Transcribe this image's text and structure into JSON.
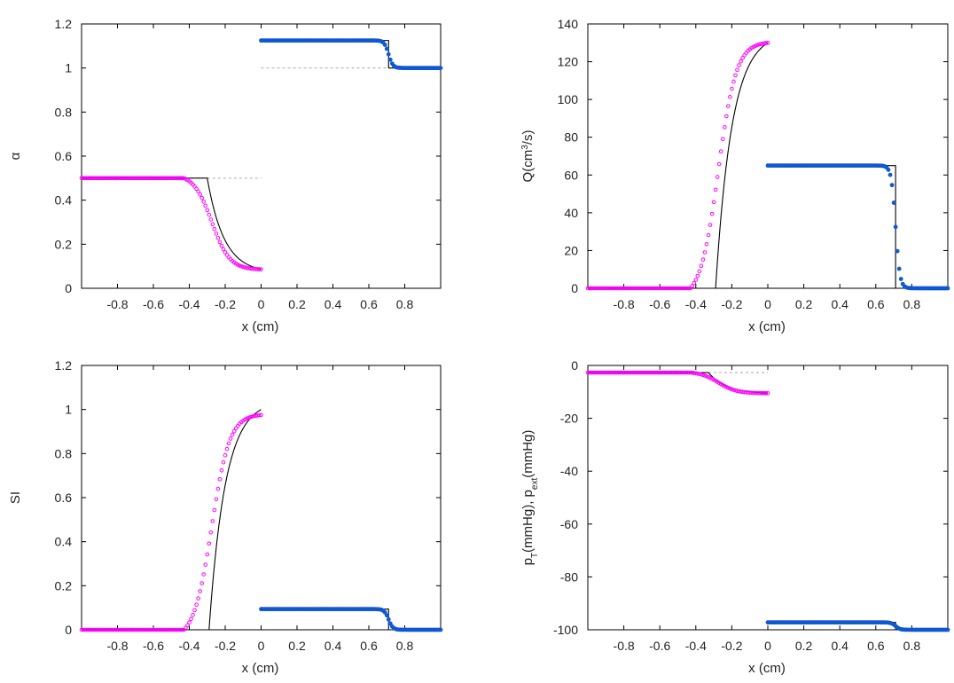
{
  "chart_data": [
    {
      "id": "alpha",
      "type": "line",
      "xlabel": "x (cm)",
      "ylabel": "α",
      "ylabel_parts": [
        {
          "t": "α",
          "s": ""
        }
      ],
      "xlim": [
        -1,
        1
      ],
      "ylim": [
        0,
        1.2
      ],
      "xticks": [
        -0.8,
        -0.6,
        -0.4,
        -0.2,
        0,
        0.2,
        0.4,
        0.6,
        0.8
      ],
      "xtick_labels": [
        "-0.8",
        "-0.6",
        "-0.4",
        "-0.2",
        "0",
        "0.2",
        "0.4",
        "0.6",
        "0.8"
      ],
      "yticks": [
        0,
        0.2,
        0.4,
        0.6,
        0.8,
        1,
        1.2
      ],
      "ytick_labels": [
        "0",
        "0.2",
        "0.4",
        "0.6",
        "0.8",
        "1",
        "1.2"
      ],
      "left": {
        "x0": -1,
        "x1": 0,
        "plateau": 0.5,
        "end": 0.086,
        "exactStart": -0.3,
        "numStart": -0.43,
        "numWidth": 0.25
      },
      "right": {
        "x0": 0,
        "x1": 1,
        "plateau": 1.125,
        "end": 1.0,
        "jump": 0.71,
        "width": 0.012
      },
      "refs": [
        {
          "x0": -0.3,
          "x1": 0,
          "y": 0.5
        },
        {
          "x0": 0,
          "x1": 0.71,
          "y": 1.0
        }
      ]
    },
    {
      "id": "Q",
      "type": "line",
      "xlabel": "x (cm)",
      "ylabel": "Q(cm3/s)",
      "ylabel_parts": [
        {
          "t": "Q(cm",
          "s": ""
        },
        {
          "t": "3",
          "s": "sup"
        },
        {
          "t": "/s)",
          "s": ""
        }
      ],
      "xlim": [
        -1,
        1
      ],
      "ylim": [
        0,
        140
      ],
      "xticks": [
        -0.8,
        -0.6,
        -0.4,
        -0.2,
        0,
        0.2,
        0.4,
        0.6,
        0.8
      ],
      "xtick_labels": [
        "-0.8",
        "-0.6",
        "-0.4",
        "-0.2",
        "0",
        "0.2",
        "0.4",
        "0.6",
        "0.8"
      ],
      "yticks": [
        0,
        20,
        40,
        60,
        80,
        100,
        120,
        140
      ],
      "ytick_labels": [
        "0",
        "20",
        "40",
        "60",
        "80",
        "100",
        "120",
        "140"
      ],
      "left": {
        "x0": -1,
        "x1": 0,
        "plateau": 0,
        "end": 130,
        "exactStart": -0.29,
        "numStart": -0.43,
        "numWidth": 0.25
      },
      "right": {
        "x0": 0,
        "x1": 1,
        "plateau": 65,
        "end": 0,
        "jump": 0.71,
        "width": 0.012
      },
      "refs": []
    },
    {
      "id": "SI",
      "type": "line",
      "xlabel": "x (cm)",
      "ylabel": "SI",
      "ylabel_parts": [
        {
          "t": "SI",
          "s": ""
        }
      ],
      "xlim": [
        -1,
        1
      ],
      "ylim": [
        0,
        1.2
      ],
      "xticks": [
        -0.8,
        -0.6,
        -0.4,
        -0.2,
        0,
        0.2,
        0.4,
        0.6,
        0.8
      ],
      "xtick_labels": [
        "-0.8",
        "-0.6",
        "-0.4",
        "-0.2",
        "0",
        "0.2",
        "0.4",
        "0.6",
        "0.8"
      ],
      "yticks": [
        0,
        0.2,
        0.4,
        0.6,
        0.8,
        1,
        1.2
      ],
      "ytick_labels": [
        "0",
        "0.2",
        "0.4",
        "0.6",
        "0.8",
        "1",
        "1.2"
      ],
      "left": {
        "x0": -1,
        "x1": 0,
        "plateau": 0,
        "end": 1.0,
        "numEnd": 0.975,
        "exactStart": -0.29,
        "numStart": -0.43,
        "numWidth": 0.25
      },
      "right": {
        "x0": 0,
        "x1": 1,
        "plateau": 0.094,
        "end": 0,
        "jump": 0.71,
        "width": 0.012
      },
      "refs": []
    },
    {
      "id": "pT",
      "type": "line",
      "xlabel": "x (cm)",
      "ylabel": "pT(mmHg), pext(mmHg)",
      "ylabel_parts": [
        {
          "t": "p",
          "s": ""
        },
        {
          "t": "T",
          "s": "sub"
        },
        {
          "t": "(mmHg), p",
          "s": ""
        },
        {
          "t": "ext",
          "s": "sub"
        },
        {
          "t": "(mmHg)",
          "s": ""
        }
      ],
      "xlim": [
        -1,
        1
      ],
      "ylim": [
        -100,
        0
      ],
      "xticks": [
        -0.8,
        -0.6,
        -0.4,
        -0.2,
        0,
        0.2,
        0.4,
        0.6,
        0.8
      ],
      "xtick_labels": [
        "-0.8",
        "-0.6",
        "-0.4",
        "-0.2",
        "0",
        "0.2",
        "0.4",
        "0.6",
        "0.8"
      ],
      "yticks": [
        -100,
        -80,
        -60,
        -40,
        -20,
        0
      ],
      "ytick_labels": [
        "-100",
        "-80",
        "-60",
        "-40",
        "-20",
        "0"
      ],
      "left": {
        "x0": -1,
        "x1": 0,
        "plateau": -2.7,
        "end": -10.5,
        "exactStart": -0.33,
        "numStart": -0.43,
        "numWidth": 0.25
      },
      "right": {
        "x0": 0,
        "x1": 1,
        "plateau": -97.2,
        "end": -100,
        "jump": 0.71,
        "width": 0.012
      },
      "refs": [
        {
          "x0": -0.33,
          "x1": 0,
          "y": -2.7
        }
      ]
    }
  ],
  "colors": {
    "exact": "#000000",
    "left_markers": "#ff00ff",
    "right_markers": "#0066cc",
    "right_markers_edge": "#1a4bd8",
    "reference": "#aaaaaa",
    "axes": "#000000"
  }
}
